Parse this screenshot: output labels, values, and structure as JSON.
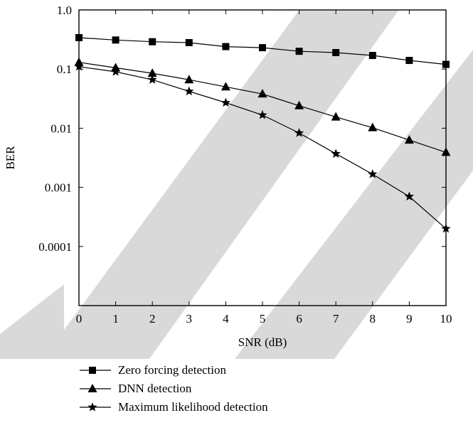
{
  "chart_data": {
    "type": "line",
    "title": "",
    "xlabel": "SNR (dB)",
    "ylabel": "BER",
    "y_scale": "log",
    "xlim": [
      0,
      10
    ],
    "ylim": [
      1e-05,
      1.0
    ],
    "x_ticks": [
      "0",
      "1",
      "2",
      "3",
      "4",
      "5",
      "6",
      "7",
      "8",
      "9",
      "10"
    ],
    "y_ticks": [
      "1.0",
      "0.1",
      "0.01",
      "0.001",
      "0.0001"
    ],
    "legend_position": "below",
    "grid": false,
    "x": [
      0,
      1,
      2,
      3,
      4,
      5,
      6,
      7,
      8,
      9,
      10
    ],
    "series": [
      {
        "name": "Zero forcing detection",
        "marker": "square",
        "color": "#000000",
        "values": [
          0.34,
          0.31,
          0.29,
          0.28,
          0.24,
          0.23,
          0.2,
          0.19,
          0.17,
          0.14,
          0.12
        ]
      },
      {
        "name": "DNN detection",
        "marker": "triangle",
        "color": "#000000",
        "values": [
          0.13,
          0.105,
          0.085,
          0.066,
          0.05,
          0.038,
          0.024,
          0.0155,
          0.0102,
          0.0063,
          0.0039
        ]
      },
      {
        "name": "Maximum likelihood detection",
        "marker": "star",
        "color": "#000000",
        "values": [
          0.11,
          0.09,
          0.066,
          0.042,
          0.027,
          0.0167,
          0.0083,
          0.0037,
          0.00167,
          0.0007,
          0.0002
        ]
      }
    ]
  },
  "watermark_color": "#d9d9d9"
}
